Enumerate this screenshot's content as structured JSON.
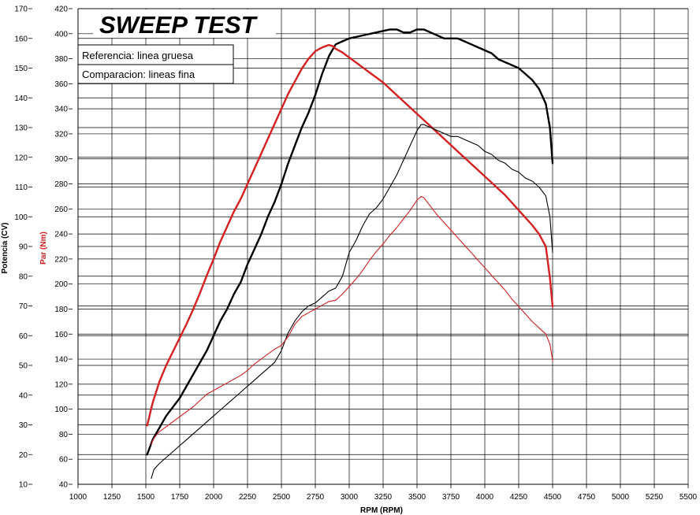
{
  "chart_data": {
    "type": "line",
    "title": "SWEEP TEST",
    "xlabel": "RPM (RPM)",
    "ylabel_power": "Potencia (CV)",
    "ylabel_torque": "Par (Nm)",
    "xlim": [
      1000,
      5500
    ],
    "ylim_power": [
      10,
      170
    ],
    "ylim_torque": [
      40,
      420
    ],
    "x_ticks": [
      1000,
      1250,
      1500,
      1750,
      2000,
      2250,
      2500,
      2750,
      3000,
      3250,
      3500,
      3750,
      4000,
      4250,
      4500,
      4750,
      5000,
      5250,
      5500
    ],
    "power_ticks": [
      10,
      20,
      30,
      40,
      50,
      60,
      70,
      80,
      90,
      100,
      110,
      120,
      130,
      140,
      150,
      160,
      170
    ],
    "torque_ticks": [
      40,
      60,
      80,
      100,
      120,
      140,
      160,
      180,
      200,
      220,
      240,
      260,
      280,
      300,
      320,
      340,
      360,
      380,
      400,
      420
    ],
    "legend": [
      "Referencia: linea gruesa",
      "Comparacion: lineas fina"
    ],
    "grid": true,
    "colors": {
      "torque": "#d42020",
      "power": "#000000"
    },
    "series": [
      {
        "axis": "power",
        "weight": "thick",
        "color": "#000000",
        "x": [
          1510,
          1550,
          1600,
          1650,
          1700,
          1750,
          1800,
          1850,
          1900,
          1950,
          2000,
          2050,
          2100,
          2150,
          2200,
          2250,
          2300,
          2350,
          2400,
          2450,
          2500,
          2550,
          2600,
          2650,
          2700,
          2750,
          2800,
          2850,
          2900,
          2950,
          3000,
          3100,
          3200,
          3300,
          3350,
          3400,
          3450,
          3500,
          3550,
          3600,
          3650,
          3700,
          3750,
          3800,
          3850,
          3900,
          3950,
          4000,
          4050,
          4100,
          4150,
          4200,
          4250,
          4300,
          4350,
          4400,
          4450,
          4480,
          4500
        ],
        "y": [
          20,
          25,
          29,
          33,
          36,
          39,
          43,
          47,
          51,
          55,
          60,
          65,
          69,
          74,
          78,
          84,
          89,
          94,
          100,
          105,
          111,
          118,
          124,
          130,
          135,
          141,
          148,
          154,
          158,
          159,
          160,
          161,
          162,
          163,
          163,
          162,
          162,
          163,
          163,
          162,
          161,
          160,
          160,
          160,
          159,
          158,
          157,
          156,
          155,
          153,
          152,
          151,
          150,
          148,
          146,
          143,
          138,
          130,
          118
        ]
      },
      {
        "axis": "torque",
        "weight": "thick",
        "color": "#d42020",
        "x": [
          1510,
          1550,
          1600,
          1650,
          1700,
          1750,
          1800,
          1850,
          1900,
          1950,
          2000,
          2050,
          2100,
          2150,
          2200,
          2250,
          2300,
          2350,
          2400,
          2450,
          2500,
          2550,
          2600,
          2650,
          2700,
          2750,
          2800,
          2850,
          2880,
          2900,
          2950,
          3000,
          3050,
          3100,
          3150,
          3200,
          3250,
          3300,
          3350,
          3400,
          3450,
          3500,
          3550,
          3600,
          3650,
          3700,
          3750,
          3800,
          3850,
          3900,
          3950,
          4000,
          4050,
          4100,
          4150,
          4200,
          4250,
          4300,
          4350,
          4400,
          4450,
          4480,
          4500
        ],
        "y": [
          87,
          105,
          122,
          135,
          146,
          157,
          168,
          180,
          193,
          207,
          220,
          234,
          246,
          258,
          268,
          280,
          292,
          304,
          316,
          328,
          340,
          352,
          362,
          372,
          380,
          386,
          389,
          391,
          390,
          388,
          385,
          381,
          377,
          373,
          369,
          365,
          361,
          356,
          351,
          346,
          341,
          336,
          331,
          326,
          321,
          316,
          311,
          306,
          301,
          296,
          291,
          286,
          281,
          276,
          271,
          265,
          259,
          253,
          247,
          240,
          230,
          205,
          182
        ]
      },
      {
        "axis": "power",
        "weight": "thin",
        "color": "#000000",
        "x": [
          1540,
          1560,
          1600,
          1650,
          1700,
          1750,
          1800,
          1850,
          1900,
          1950,
          2000,
          2050,
          2100,
          2150,
          2200,
          2250,
          2300,
          2350,
          2400,
          2450,
          2500,
          2550,
          2600,
          2650,
          2700,
          2750,
          2800,
          2850,
          2900,
          2950,
          3000,
          3050,
          3100,
          3150,
          3200,
          3250,
          3300,
          3350,
          3400,
          3450,
          3500,
          3530,
          3550,
          3600,
          3650,
          3700,
          3750,
          3800,
          3850,
          3900,
          3950,
          4000,
          4050,
          4100,
          4150,
          4200,
          4250,
          4300,
          4350,
          4400,
          4450,
          4480,
          4500
        ],
        "y": [
          12,
          15,
          17,
          19,
          21,
          23,
          25,
          27,
          29,
          31,
          33,
          35,
          37,
          39,
          41,
          43,
          45,
          47,
          49,
          51,
          55,
          61,
          65,
          68,
          70,
          71,
          73,
          75,
          76,
          80,
          88,
          92,
          97,
          101,
          103,
          106,
          110,
          114,
          119,
          124,
          129,
          131,
          131,
          130,
          129,
          128,
          127,
          127,
          126,
          125,
          124,
          122,
          121,
          119,
          118,
          116,
          115,
          113,
          112,
          110,
          107,
          100,
          88
        ]
      },
      {
        "axis": "torque",
        "weight": "thin",
        "color": "#d42020",
        "x": [
          1540,
          1560,
          1600,
          1650,
          1700,
          1750,
          1800,
          1850,
          1900,
          1950,
          2000,
          2050,
          2100,
          2150,
          2200,
          2250,
          2300,
          2350,
          2400,
          2450,
          2500,
          2550,
          2600,
          2650,
          2700,
          2750,
          2800,
          2850,
          2900,
          2950,
          3000,
          3050,
          3100,
          3150,
          3200,
          3250,
          3300,
          3350,
          3400,
          3450,
          3500,
          3530,
          3550,
          3600,
          3650,
          3700,
          3750,
          3800,
          3850,
          3900,
          3950,
          4000,
          4050,
          4100,
          4150,
          4200,
          4250,
          4300,
          4350,
          4400,
          4450,
          4480,
          4500
        ],
        "y": [
          72,
          77,
          82,
          86,
          90,
          94,
          98,
          102,
          107,
          112,
          115,
          118,
          121,
          124,
          127,
          131,
          136,
          140,
          144,
          148,
          151,
          158,
          168,
          174,
          177,
          180,
          183,
          186,
          187,
          192,
          198,
          204,
          211,
          219,
          226,
          232,
          239,
          245,
          252,
          259,
          267,
          270,
          269,
          262,
          255,
          249,
          243,
          237,
          231,
          225,
          219,
          213,
          207,
          201,
          195,
          188,
          182,
          176,
          170,
          165,
          160,
          152,
          139
        ]
      }
    ]
  }
}
